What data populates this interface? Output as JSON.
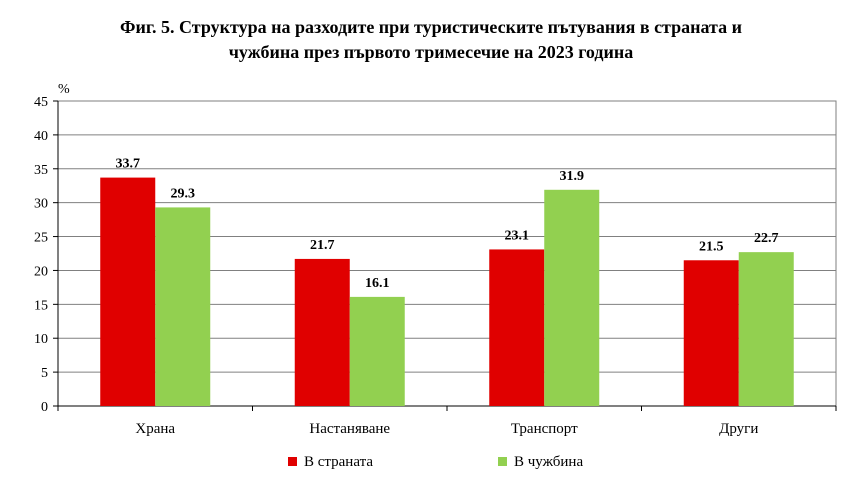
{
  "chart_data": {
    "type": "bar",
    "title_lines": [
      "Фиг. 5. Структура на разходите при туристическите пътувания в страната и",
      "чужбина през първото тримесечие на 2023 година"
    ],
    "ylabel": "%",
    "xlabel": "",
    "ylim": [
      0,
      45
    ],
    "yticks": [
      0,
      5,
      10,
      15,
      20,
      25,
      30,
      35,
      40,
      45
    ],
    "grid": true,
    "legend": "bottom",
    "categories": [
      "Храна",
      "Настаняване",
      "Транспорт",
      "Други"
    ],
    "series": [
      {
        "name": "В страната",
        "values": [
          33.7,
          21.7,
          23.1,
          21.5
        ],
        "color": "#e00000"
      },
      {
        "name": "В чужбина",
        "values": [
          29.3,
          16.1,
          31.9,
          22.7
        ],
        "color": "#92d050"
      }
    ]
  }
}
